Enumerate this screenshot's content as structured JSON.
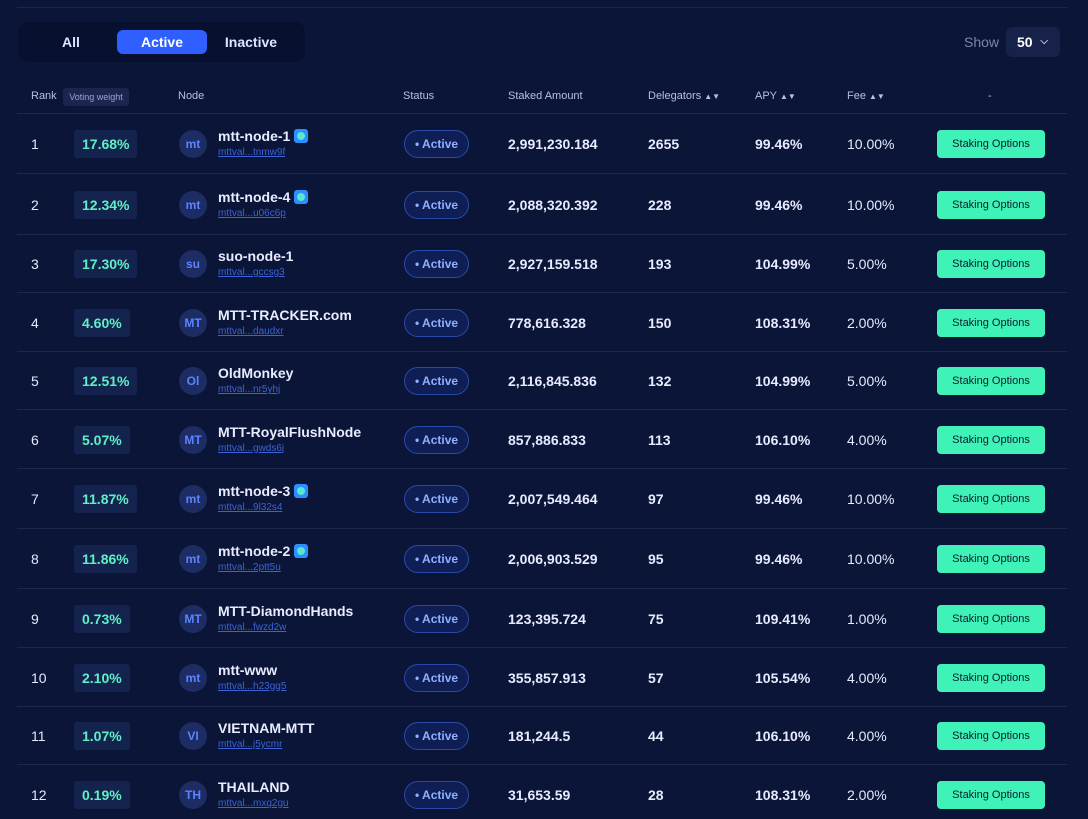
{
  "filters": {
    "tabs": [
      {
        "label": "All"
      },
      {
        "label": "Active"
      },
      {
        "label": "Inactive"
      }
    ],
    "selected": "Active"
  },
  "show": {
    "label": "Show",
    "value": "50"
  },
  "columns": {
    "rank": "Rank",
    "voting_weight": "Voting weight",
    "node": "Node",
    "status": "Status",
    "staked": "Staked Amount",
    "delegators": "Delegators",
    "apy": "APY",
    "fee": "Fee",
    "action": "-"
  },
  "rows": [
    {
      "rank": "1",
      "weight": "17.68%",
      "avatar": "mt",
      "name": "mtt-node-1",
      "verified": true,
      "addr": "mttval...tnmw9f",
      "status": "• Active",
      "staked": "2,991,230.184",
      "delegators": "2655",
      "apy": "99.46%",
      "fee": "10.00%",
      "button": "Staking Options"
    },
    {
      "rank": "2",
      "weight": "12.34%",
      "avatar": "mt",
      "name": "mtt-node-4",
      "verified": true,
      "addr": "mttval...u06c6p",
      "status": "• Active",
      "staked": "2,088,320.392",
      "delegators": "228",
      "apy": "99.46%",
      "fee": "10.00%",
      "button": "Staking Options"
    },
    {
      "rank": "3",
      "weight": "17.30%",
      "avatar": "su",
      "name": "suo-node-1",
      "verified": false,
      "addr": "mttval...gccsg3",
      "status": "• Active",
      "staked": "2,927,159.518",
      "delegators": "193",
      "apy": "104.99%",
      "fee": "5.00%",
      "button": "Staking Options"
    },
    {
      "rank": "4",
      "weight": "4.60%",
      "avatar": "MT",
      "name": "MTT-TRACKER.com",
      "verified": false,
      "addr": "mttval...daudxr",
      "status": "• Active",
      "staked": "778,616.328",
      "delegators": "150",
      "apy": "108.31%",
      "fee": "2.00%",
      "button": "Staking Options"
    },
    {
      "rank": "5",
      "weight": "12.51%",
      "avatar": "Ol",
      "name": "OldMonkey",
      "verified": false,
      "addr": "mttval...nr5yhj",
      "status": "• Active",
      "staked": "2,116,845.836",
      "delegators": "132",
      "apy": "104.99%",
      "fee": "5.00%",
      "button": "Staking Options"
    },
    {
      "rank": "6",
      "weight": "5.07%",
      "avatar": "MT",
      "name": "MTT-RoyalFlushNode",
      "verified": false,
      "addr": "mttval...gwds6j",
      "status": "• Active",
      "staked": "857,886.833",
      "delegators": "113",
      "apy": "106.10%",
      "fee": "4.00%",
      "button": "Staking Options"
    },
    {
      "rank": "7",
      "weight": "11.87%",
      "avatar": "mt",
      "name": "mtt-node-3",
      "verified": true,
      "addr": "mttval...9l32s4",
      "status": "• Active",
      "staked": "2,007,549.464",
      "delegators": "97",
      "apy": "99.46%",
      "fee": "10.00%",
      "button": "Staking Options"
    },
    {
      "rank": "8",
      "weight": "11.86%",
      "avatar": "mt",
      "name": "mtt-node-2",
      "verified": true,
      "addr": "mttval...2ptt5u",
      "status": "• Active",
      "staked": "2,006,903.529",
      "delegators": "95",
      "apy": "99.46%",
      "fee": "10.00%",
      "button": "Staking Options"
    },
    {
      "rank": "9",
      "weight": "0.73%",
      "avatar": "MT",
      "name": "MTT-DiamondHands",
      "verified": false,
      "addr": "mttval...fwzd2w",
      "status": "• Active",
      "staked": "123,395.724",
      "delegators": "75",
      "apy": "109.41%",
      "fee": "1.00%",
      "button": "Staking Options"
    },
    {
      "rank": "10",
      "weight": "2.10%",
      "avatar": "mt",
      "name": "mtt-www",
      "verified": false,
      "addr": "mttval...h23gg5",
      "status": "• Active",
      "staked": "355,857.913",
      "delegators": "57",
      "apy": "105.54%",
      "fee": "4.00%",
      "button": "Staking Options"
    },
    {
      "rank": "11",
      "weight": "1.07%",
      "avatar": "VI",
      "name": "VIETNAM-MTT",
      "verified": false,
      "addr": "mttval...j5ycmr",
      "status": "• Active",
      "staked": "181,244.5",
      "delegators": "44",
      "apy": "106.10%",
      "fee": "4.00%",
      "button": "Staking Options"
    },
    {
      "rank": "12",
      "weight": "0.19%",
      "avatar": "TH",
      "name": "THAILAND",
      "verified": false,
      "addr": "mttval...mxq2gu",
      "status": "• Active",
      "staked": "31,653.59",
      "delegators": "28",
      "apy": "108.31%",
      "fee": "2.00%",
      "button": "Staking Options"
    }
  ]
}
